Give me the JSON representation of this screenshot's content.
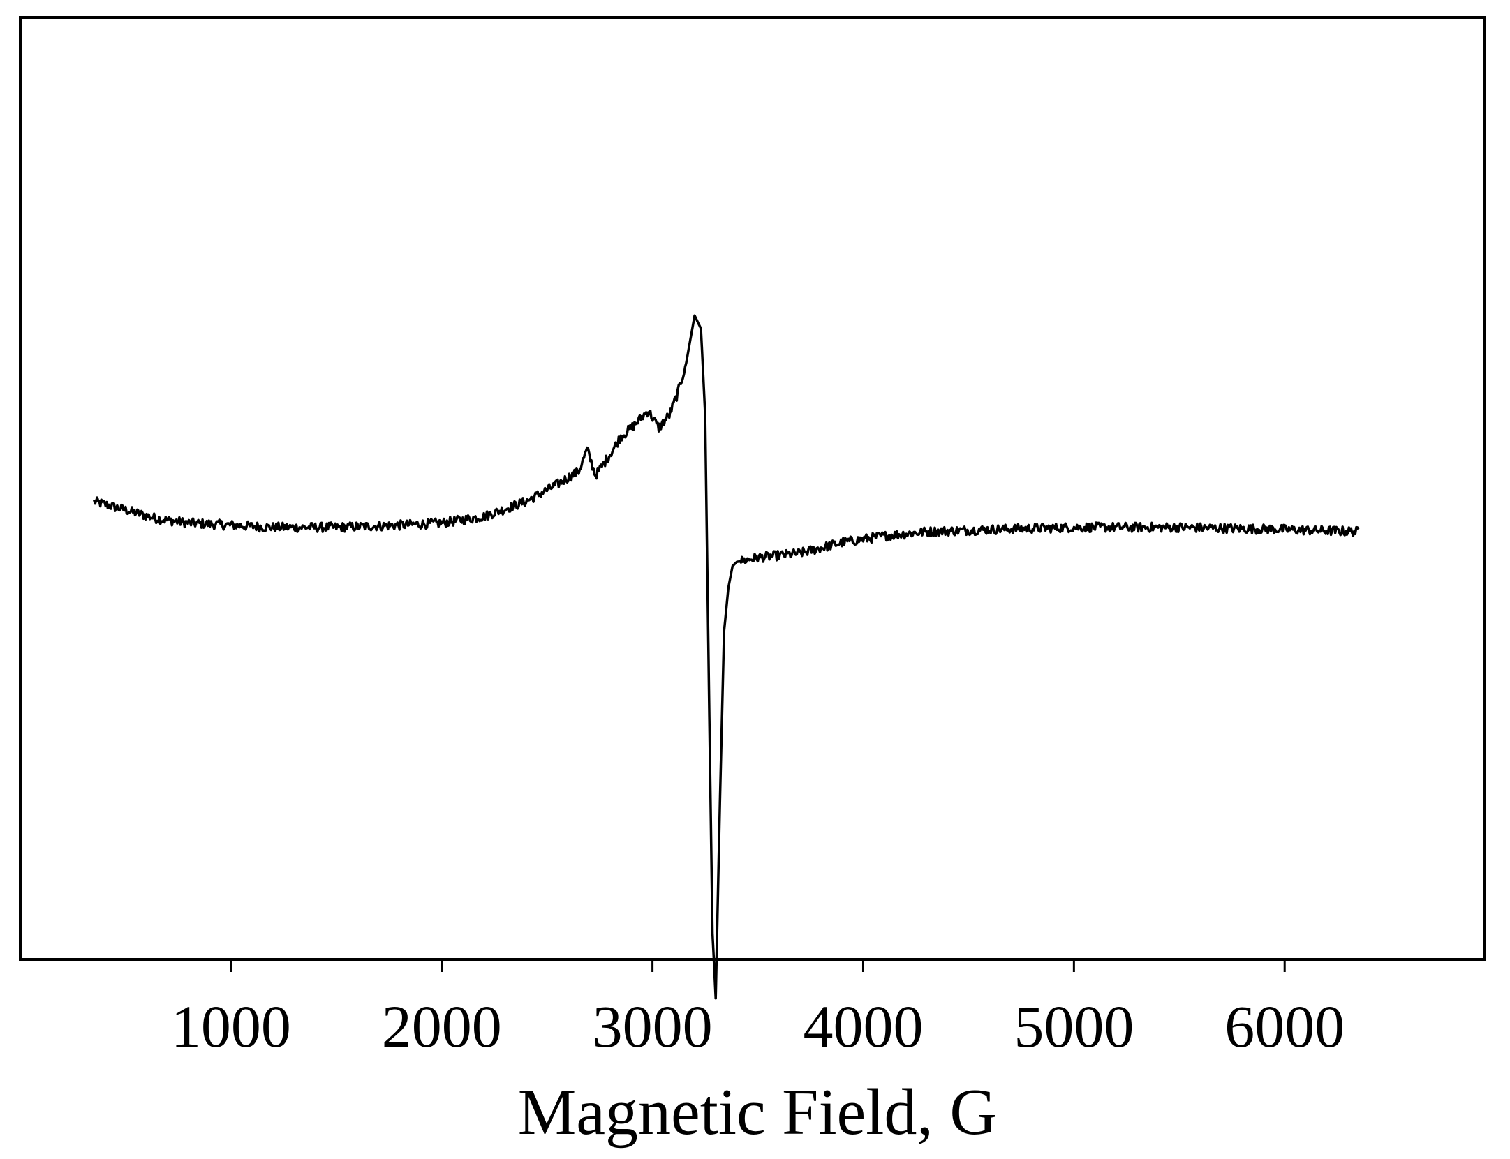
{
  "chart_data": {
    "type": "line",
    "title": "",
    "xlabel": "Magnetic Field, G",
    "ylabel": "",
    "xlim": [
      0,
      6950
    ],
    "ylim": [
      -1.06,
      1.12
    ],
    "x_ticks": [
      1000,
      2000,
      3000,
      4000,
      5000,
      6000
    ],
    "x_tick_labels": [
      "1000",
      "2000",
      "3000",
      "4000",
      "5000",
      "6000"
    ],
    "y_ticks_shown": false,
    "grid": false,
    "legend": "none",
    "line_color": "#000000",
    "series": [
      {
        "x": [
          350,
          500,
          650,
          800,
          1000,
          1200,
          1500,
          1800,
          2000,
          2200,
          2400,
          2550,
          2650,
          2690,
          2730,
          2800,
          2850,
          2900,
          2980,
          3030,
          3080,
          3120,
          3160,
          3200,
          3230,
          3250,
          3270,
          3285,
          3300,
          3320,
          3340,
          3360,
          3380,
          3400,
          3500,
          3700,
          3900,
          4100,
          4300,
          4600,
          5000,
          5500,
          6000,
          6350
        ],
        "y": [
          0.0,
          -0.02,
          -0.04,
          -0.05,
          -0.055,
          -0.06,
          -0.06,
          -0.055,
          -0.05,
          -0.035,
          0.0,
          0.04,
          0.07,
          0.12,
          0.06,
          0.11,
          0.15,
          0.17,
          0.21,
          0.17,
          0.2,
          0.25,
          0.32,
          0.43,
          0.4,
          0.2,
          -0.5,
          -1.0,
          -1.15,
          -0.7,
          -0.3,
          -0.2,
          -0.15,
          -0.14,
          -0.13,
          -0.12,
          -0.095,
          -0.08,
          -0.07,
          -0.065,
          -0.06,
          -0.06,
          -0.065,
          -0.07
        ]
      }
    ]
  }
}
